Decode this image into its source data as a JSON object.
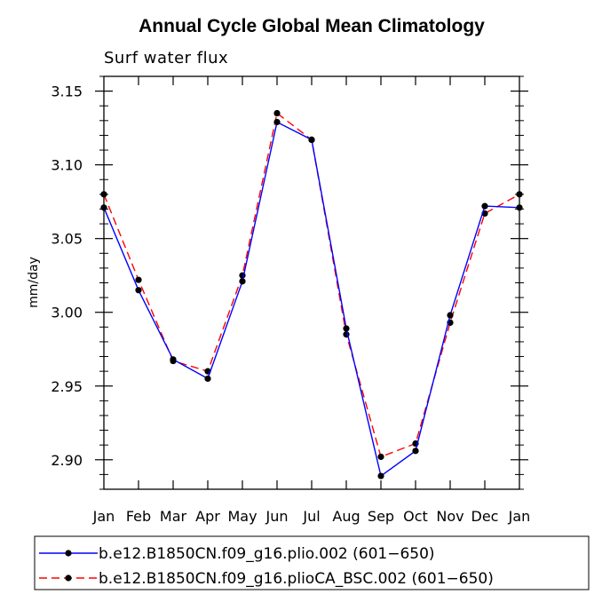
{
  "chart_data": {
    "type": "line",
    "title": "Annual Cycle Global Mean Climatology",
    "subtitle": "Surf water flux",
    "xlabel": "",
    "ylabel": "mm/day",
    "categories": [
      "Jan",
      "Feb",
      "Mar",
      "Apr",
      "May",
      "Jun",
      "Jul",
      "Aug",
      "Sep",
      "Oct",
      "Nov",
      "Dec",
      "Jan"
    ],
    "ylim": [
      2.88,
      3.16
    ],
    "yticks": [
      "2.90",
      "2.95",
      "3.00",
      "3.05",
      "3.10",
      "3.15"
    ],
    "grid": false,
    "legend_position": "bottom",
    "series": [
      {
        "name": "b.e12.B1850CN.f09_g16.plio.002 (601−650)",
        "color": "#0000ff",
        "style": "solid",
        "values": [
          3.071,
          3.015,
          2.968,
          2.955,
          3.021,
          3.129,
          3.117,
          2.989,
          2.889,
          2.906,
          2.998,
          3.072,
          3.071
        ]
      },
      {
        "name": "b.e12.B1850CN.f09_g16.plioCA_BSC.002 (601−650)",
        "color": "#ff0000",
        "style": "dashed",
        "values": [
          3.08,
          3.022,
          2.967,
          2.96,
          3.025,
          3.135,
          3.117,
          2.985,
          2.902,
          2.911,
          2.993,
          3.067,
          3.08
        ]
      }
    ]
  }
}
